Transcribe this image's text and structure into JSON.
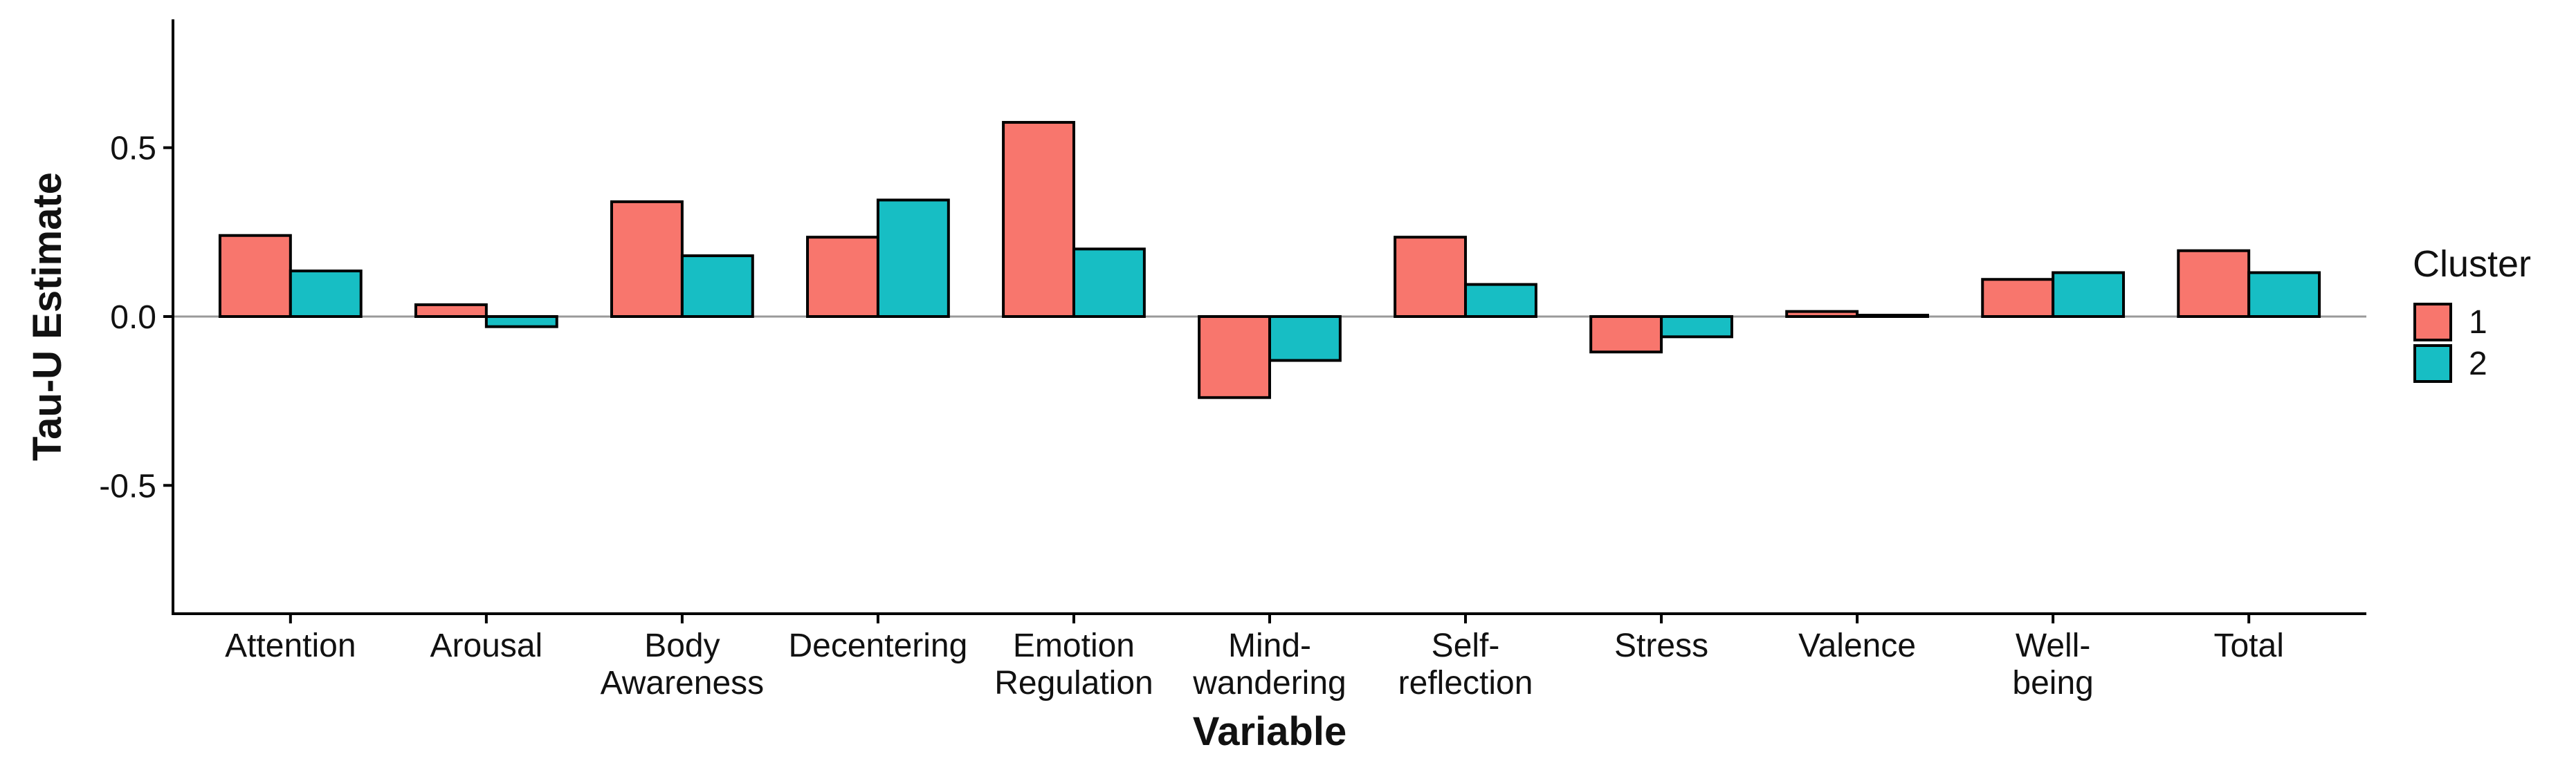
{
  "chart_data": {
    "type": "bar",
    "xlabel": "Variable",
    "ylabel": "Tau-U Estimate",
    "ylim": [
      -0.88,
      0.88
    ],
    "yticks": [
      -0.5,
      0.0,
      0.5
    ],
    "ytick_labels": [
      "-0.5",
      "0.0",
      "0.5"
    ],
    "categories": [
      [
        "Attention"
      ],
      [
        "Arousal"
      ],
      [
        "Body",
        "Awareness"
      ],
      [
        "Decentering"
      ],
      [
        "Emotion",
        "Regulation"
      ],
      [
        "Mind-",
        "wandering"
      ],
      [
        "Self-",
        "reflection"
      ],
      [
        "Stress"
      ],
      [
        "Valence"
      ],
      [
        "Well-",
        "being"
      ],
      [
        "Total"
      ]
    ],
    "series": [
      {
        "name": "1",
        "color": "#F8766D",
        "values": [
          0.24,
          0.035,
          0.34,
          0.235,
          0.575,
          -0.24,
          0.235,
          -0.105,
          0.015,
          0.11,
          0.195
        ]
      },
      {
        "name": "2",
        "color": "#17BEC4",
        "values": [
          0.135,
          -0.03,
          0.18,
          0.345,
          0.2,
          -0.13,
          0.095,
          -0.06,
          0.004,
          0.13,
          0.13
        ]
      }
    ],
    "grid": false,
    "zero_line": true,
    "legend": {
      "title": "Cluster",
      "position": "right"
    }
  }
}
